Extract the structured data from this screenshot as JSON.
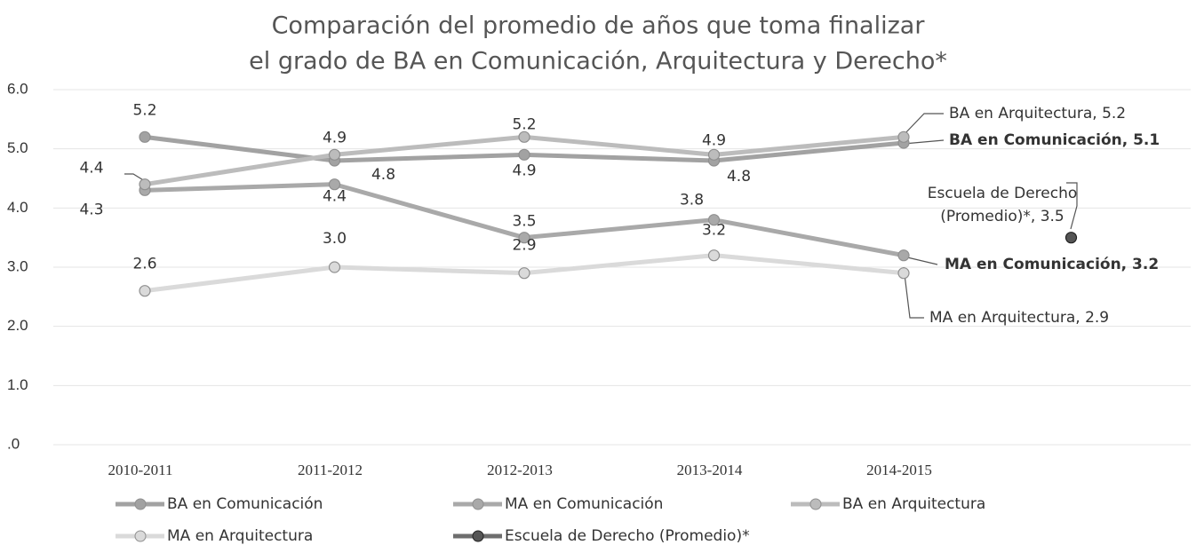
{
  "chart_data": {
    "type": "line",
    "title": [
      "Comparación del promedio de años que toma finalizar",
      "el grado de BA en Comunicación, Arquitectura y Derecho*"
    ],
    "categories": [
      "2010-2011",
      "2011-2012",
      "2012-2013",
      "2013-2014",
      "2014-2015",
      null
    ],
    "series": [
      {
        "name": "BA en Comunicación",
        "color": "#a2a2a2",
        "values": [
          5.2,
          4.8,
          4.9,
          4.8,
          5.1,
          null
        ],
        "value_labels": [
          "5.2",
          "4.8",
          "4.9",
          "4.8",
          null,
          null
        ]
      },
      {
        "name": "MA en Comunicación",
        "color": "#a9a9a9",
        "values": [
          4.3,
          4.4,
          3.5,
          3.8,
          3.2,
          null
        ],
        "value_labels": [
          "4.3",
          "4.4",
          "3.5",
          "3.8",
          null,
          null
        ]
      },
      {
        "name": "BA en Arquitectura",
        "color": "#bcbcbc",
        "values": [
          4.4,
          4.9,
          5.2,
          4.9,
          5.2,
          null
        ],
        "value_labels": [
          "4.4",
          "4.9",
          "5.2",
          "4.9",
          null,
          null
        ]
      },
      {
        "name": "MA en Arquitectura",
        "color": "#dadada",
        "values": [
          2.6,
          3.0,
          2.9,
          3.2,
          2.9,
          null
        ],
        "value_labels": [
          "2.6",
          "3.0",
          "2.9",
          "3.2",
          null,
          null
        ]
      },
      {
        "name": "Escuela de Derecho (Promedio)*",
        "color": "#6e6e6e",
        "values": [
          null,
          null,
          null,
          null,
          null,
          3.5
        ]
      }
    ],
    "annotations": [
      "BA en Arquitectura, 5.2",
      "BA en Comunicación, 5.1",
      "Escuela de Derecho",
      "(Promedio)*, 3.5",
      "MA en Comunicación, 3.2",
      "MA en Arquitectura, 2.9"
    ],
    "ylim": [
      0,
      6
    ],
    "yticks": [
      {
        "value": 0,
        "label": ".0"
      },
      {
        "value": 1,
        "label": "1.0"
      },
      {
        "value": 2,
        "label": "2.0"
      },
      {
        "value": 3,
        "label": "3.0"
      },
      {
        "value": 4,
        "label": "4.0"
      },
      {
        "value": 5,
        "label": "5.0"
      },
      {
        "value": 6,
        "label": "6.0"
      }
    ],
    "grid": true
  }
}
